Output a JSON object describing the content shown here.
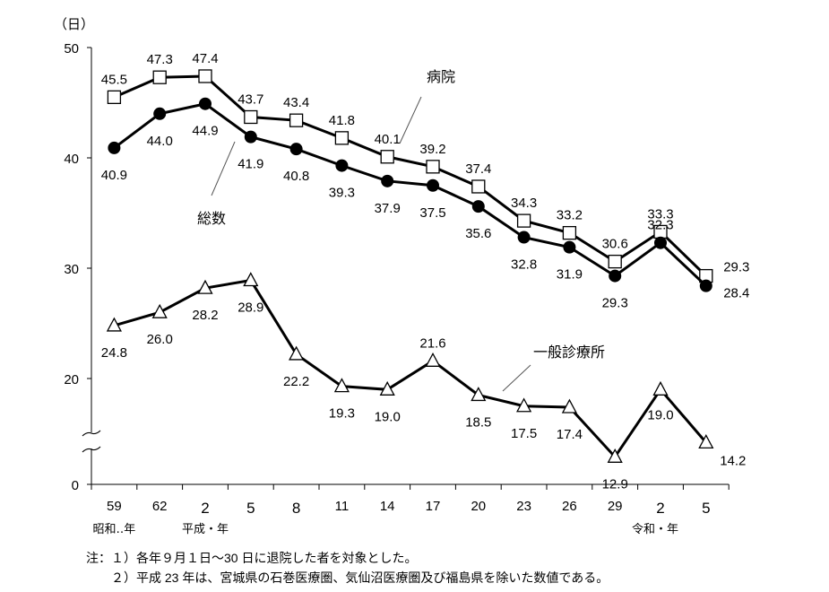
{
  "chart_data": {
    "type": "line",
    "ylabel": "（日）",
    "yticks": [
      0,
      20,
      30,
      40,
      50
    ],
    "ylim": [
      0,
      50
    ],
    "axis_break": true,
    "categories": [
      "59",
      "62",
      "2",
      "5",
      "8",
      "11",
      "14",
      "17",
      "20",
      "23",
      "26",
      "29",
      "2",
      "5"
    ],
    "era_labels": [
      {
        "at": 0,
        "text": "昭和‥年"
      },
      {
        "at": 2,
        "text": "平成・年"
      },
      {
        "at": 12,
        "text": "令和・年"
      }
    ],
    "series": [
      {
        "name": "病院",
        "marker": "square-open",
        "values": [
          45.5,
          47.3,
          47.4,
          43.7,
          43.4,
          41.8,
          40.1,
          39.2,
          37.4,
          34.3,
          33.2,
          30.6,
          33.3,
          29.3
        ]
      },
      {
        "name": "総数",
        "marker": "circle-filled",
        "values": [
          40.9,
          44.0,
          44.9,
          41.9,
          40.8,
          39.3,
          37.9,
          37.5,
          35.6,
          32.8,
          31.9,
          29.3,
          32.3,
          28.4
        ]
      },
      {
        "name": "一般診療所",
        "marker": "triangle-open",
        "values": [
          24.8,
          26.0,
          28.2,
          28.9,
          22.2,
          19.3,
          19.0,
          21.6,
          18.5,
          17.5,
          17.4,
          12.9,
          19.0,
          14.2
        ]
      }
    ],
    "legend": "inline-annotations",
    "grid": false
  },
  "notes": [
    "注：１）各年９月１日～30 日に退院した者を対象とした。",
    "　　２）平成 23 年は、宮城県の石巻医療圏、気仙沼医療圏及び福島県を除いた数値である。"
  ]
}
